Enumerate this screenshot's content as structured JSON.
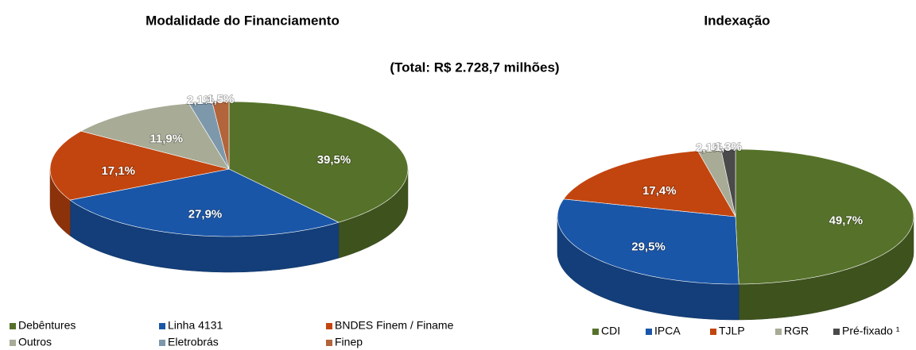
{
  "subtitle": "(Total: R$ 2.728,7 milhões)",
  "chart_data": [
    {
      "type": "pie",
      "title": "Modalidade do Financiamento",
      "categories": [
        "Debêntures",
        "Linha 4131",
        "BNDES Finem / Finame",
        "Outros",
        "Eletrobrás",
        "Finep"
      ],
      "values": [
        39.5,
        27.9,
        17.1,
        11.9,
        2.1,
        1.5
      ],
      "value_labels": [
        "39,5%",
        "27,9%",
        "17,1%",
        "11,9%",
        "2,1%",
        "1,5%"
      ],
      "colors": [
        "#56722a",
        "#1a56a8",
        "#c2450f",
        "#a8ab96",
        "#7d98ab",
        "#b2643a"
      ],
      "legend": "bottom"
    },
    {
      "type": "pie",
      "title": "Indexação",
      "categories": [
        "CDI",
        "IPCA",
        "TJLP",
        "RGR",
        "Pré-fixado ¹"
      ],
      "values": [
        49.7,
        29.5,
        17.4,
        2.1,
        1.3
      ],
      "value_labels": [
        "49,7%",
        "29,5%",
        "17,4%",
        "2,1%",
        "1,3%"
      ],
      "colors": [
        "#56722a",
        "#1a56a8",
        "#c2450f",
        "#a8ab96",
        "#4a4a4a"
      ],
      "legend": "bottom"
    }
  ]
}
